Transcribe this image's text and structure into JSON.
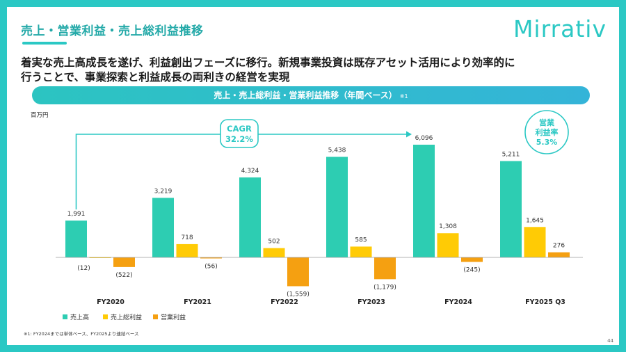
{
  "header": {
    "title": "売上・営業利益・売上総利益推移",
    "logo_text": "Mirrativ"
  },
  "headline": {
    "line1": "着実な売上高成長を遂げ、利益創出フェーズに移行。新規事業投資は既存アセット活用により効率的に",
    "line2": "行うことで、事業探索と利益成長の両利きの経営を実現"
  },
  "banner": {
    "title": "売上・売上総利益・営業利益推移（年間ベース）",
    "note": "※1"
  },
  "footnote": "※1: FY2024までは単体ベース、FY2025より連結ベース",
  "page_number": "44",
  "colors": {
    "accent": "#2bc8c4",
    "revenue": "#2dcdb2",
    "gross_profit": "#ffcb05",
    "operating_profit": "#f5a011"
  },
  "chart_data": {
    "type": "bar",
    "title": "売上・売上総利益・営業利益推移（年間ベース）",
    "ylabel": "百万円",
    "xlabel": "",
    "grid": false,
    "legend_position": "bottom-left",
    "ylim": [
      -1700,
      6800
    ],
    "categories": [
      "FY2020",
      "FY2021",
      "FY2022",
      "FY2023",
      "FY2024",
      "FY2025 Q3"
    ],
    "series": [
      {
        "name": "売上高",
        "values": [
          1991,
          3219,
          4324,
          5438,
          6096,
          5211
        ],
        "labels": [
          "1,991",
          "3,219",
          "4,324",
          "5,438",
          "6,096",
          "5,211"
        ]
      },
      {
        "name": "売上総利益",
        "values": [
          -12,
          718,
          502,
          585,
          1308,
          1645
        ],
        "labels": [
          "(12)",
          "718",
          "502",
          "585",
          "1,308",
          "1,645"
        ]
      },
      {
        "name": "営業利益",
        "values": [
          -522,
          -56,
          -1559,
          -1179,
          -245,
          276
        ],
        "labels": [
          "(522)",
          "(56)",
          "(1,559)",
          "(1,179)",
          "(245)",
          "276"
        ]
      }
    ],
    "annotations": {
      "cagr_label": "CAGR",
      "cagr_value": "32.2%",
      "margin_label_line1": "営業",
      "margin_label_line2": "利益率",
      "margin_value": "5.3%"
    }
  }
}
